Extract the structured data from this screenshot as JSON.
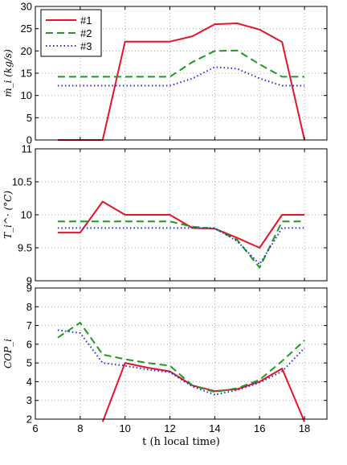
{
  "chart_data": [
    {
      "type": "line",
      "ylabel": "ṁ_i (kg/s)",
      "xlim": [
        6,
        19
      ],
      "ylim": [
        0,
        30
      ],
      "yticks": [
        0,
        5,
        10,
        15,
        20,
        25,
        30
      ],
      "grid": true,
      "legend": {
        "position": "top-left",
        "entries": [
          "#1",
          "#2",
          "#3"
        ]
      },
      "x": [
        7,
        8,
        9,
        10,
        11,
        12,
        13,
        14,
        15,
        16,
        17,
        18
      ],
      "series": [
        {
          "name": "#1",
          "color": "#e8122a",
          "dash": "solid",
          "values": [
            0,
            0,
            0,
            22.1,
            22.1,
            22.1,
            23.3,
            26.0,
            26.2,
            24.8,
            22.0,
            0
          ]
        },
        {
          "name": "#2",
          "color": "#1f9a1f",
          "dash": "dashed",
          "values": [
            14.2,
            14.2,
            14.2,
            14.2,
            14.2,
            14.2,
            17.5,
            20.0,
            20.1,
            17.0,
            14.2,
            14.2
          ]
        },
        {
          "name": "#3",
          "color": "#2b2bdd",
          "dash": "dotted",
          "values": [
            12.2,
            12.2,
            12.2,
            12.2,
            12.2,
            12.2,
            13.8,
            16.4,
            16.0,
            13.8,
            12.2,
            12.2
          ]
        }
      ]
    },
    {
      "type": "line",
      "ylabel": "T_i^· (°C)",
      "xlim": [
        6,
        19
      ],
      "ylim": [
        9,
        11
      ],
      "yticks": [
        "9",
        "9.5",
        "10",
        "10.5",
        "11"
      ],
      "grid": true,
      "x": [
        7,
        8,
        9,
        10,
        11,
        12,
        13,
        14,
        15,
        16,
        17,
        18
      ],
      "series": [
        {
          "name": "#1",
          "color": "#e8122a",
          "dash": "solid",
          "values": [
            9.73,
            9.73,
            10.2,
            10.0,
            10.0,
            10.0,
            9.8,
            9.79,
            9.65,
            9.5,
            10.0,
            10.0
          ]
        },
        {
          "name": "#2",
          "color": "#1f9a1f",
          "dash": "dashed",
          "values": [
            9.9,
            9.9,
            9.9,
            9.9,
            9.9,
            9.9,
            9.82,
            9.79,
            9.62,
            9.2,
            9.9,
            9.9
          ]
        },
        {
          "name": "#3",
          "color": "#2b2bdd",
          "dash": "dotted",
          "values": [
            9.8,
            9.8,
            9.8,
            9.8,
            9.8,
            9.8,
            9.8,
            9.8,
            9.6,
            9.25,
            9.8,
            9.8
          ]
        }
      ]
    },
    {
      "type": "line",
      "ylabel": "COP_i",
      "xlabel": "t (h local time)",
      "xlim": [
        6,
        19
      ],
      "ylim": [
        2,
        9
      ],
      "yticks": [
        2,
        3,
        4,
        5,
        6,
        7,
        8,
        9
      ],
      "xticks": [
        6,
        8,
        10,
        12,
        14,
        16,
        18
      ],
      "grid": true,
      "x": [
        7,
        8,
        9,
        10,
        11,
        12,
        13,
        14,
        15,
        16,
        17,
        18
      ],
      "series": [
        {
          "name": "#1",
          "color": "#e8122a",
          "dash": "solid",
          "values": [
            null,
            null,
            0,
            5.0,
            4.75,
            4.55,
            3.8,
            3.5,
            3.6,
            4.0,
            4.7,
            0
          ]
        },
        {
          "name": "#2",
          "color": "#1f9a1f",
          "dash": "dashed",
          "values": [
            6.35,
            7.15,
            5.45,
            5.2,
            5.0,
            4.85,
            3.8,
            3.45,
            3.65,
            4.1,
            5.1,
            6.2
          ]
        },
        {
          "name": "#3",
          "color": "#2b2bdd",
          "dash": "dotted",
          "values": [
            6.75,
            6.6,
            5.0,
            4.85,
            4.65,
            4.5,
            3.75,
            3.3,
            3.55,
            3.95,
            4.55,
            5.8
          ]
        }
      ]
    }
  ]
}
